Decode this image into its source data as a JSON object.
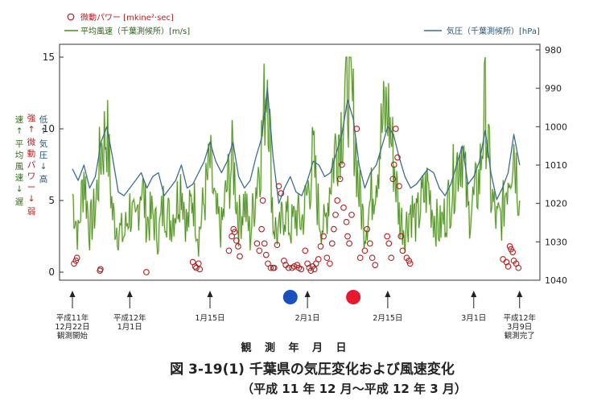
{
  "legend": {
    "power": "微動パワー [mkine²·sec]",
    "wind": "平均風速（千葉測候所）[m/s]",
    "pressure": "気圧（千葉測候所）[hPa]"
  },
  "left_annotation": {
    "wind_col": [
      "速",
      "↑",
      "平",
      "均",
      "風",
      "速",
      "↓",
      "遅"
    ],
    "power_col": [
      "強",
      "↑",
      "微",
      "動",
      "パ",
      "ワ",
      "ー",
      "↓",
      "弱"
    ],
    "pressure_col": [
      "低",
      "↑",
      "気",
      "圧",
      "↓",
      "高"
    ]
  },
  "date_labels": [
    {
      "lines": [
        "平成11年",
        "12月22日",
        "観測開始"
      ],
      "day": 0
    },
    {
      "lines": [
        "平成12年",
        "1月1日"
      ],
      "day": 10
    },
    {
      "lines": [
        "1月15日"
      ],
      "day": 24
    },
    {
      "lines": [
        "2月1日"
      ],
      "day": 41
    },
    {
      "lines": [
        "2月15日"
      ],
      "day": 55
    },
    {
      "lines": [
        "3月1日"
      ],
      "day": 70
    },
    {
      "lines": [
        "平成12年",
        "3月9日",
        "観測完了"
      ],
      "day": 78
    }
  ],
  "xlabel": "観 測 年 月 日",
  "caption": {
    "line1": "図 3-19(1)  千葉県の気圧変化および風速変化",
    "line2": "（平成 11 年 12 月～平成 12 年 3 月）"
  },
  "colors": {
    "wind": "#4a8a2a",
    "wind_light": "#a8d070",
    "pressure": "#3d6d8c",
    "power": "#b02020",
    "blue_marker": "#1a4fc0",
    "red_marker": "#e81830"
  },
  "markers": [
    {
      "color": "blue",
      "day": 38
    },
    {
      "color": "red",
      "day": 49
    }
  ],
  "chart_data": {
    "type": "line",
    "xlim_days": [
      0,
      80
    ],
    "y_left": {
      "ylim": [
        0,
        15
      ],
      "ticks": [
        0,
        5,
        10,
        15
      ]
    },
    "y_right": {
      "ylim": [
        1040,
        980
      ],
      "ticks": [
        980,
        990,
        1000,
        1010,
        1020,
        1030,
        1040
      ],
      "inverted": true
    },
    "series": [
      {
        "name": "気圧（千葉測候所）",
        "axis": "right",
        "x": [
          0,
          1,
          2,
          3,
          4,
          5,
          6,
          7,
          8,
          9,
          10,
          11,
          12,
          13,
          14,
          15,
          16,
          17,
          18,
          19,
          20,
          21,
          22,
          23,
          24,
          25,
          26,
          27,
          28,
          29,
          30,
          31,
          32,
          33,
          34,
          35,
          36,
          37,
          38,
          39,
          40,
          41,
          42,
          43,
          44,
          45,
          46,
          47,
          48,
          49,
          50,
          51,
          52,
          53,
          54,
          55,
          56,
          57,
          58,
          59,
          60,
          61,
          62,
          63,
          64,
          65,
          66,
          67,
          68,
          69,
          70,
          71,
          72,
          73,
          74,
          75,
          76,
          77,
          78
        ],
        "values": [
          1011,
          1014,
          1010,
          1016,
          1013,
          1004,
          1000,
          1008,
          1017,
          1018,
          1016,
          1014,
          1012,
          1016,
          1013,
          1012,
          1018,
          1016,
          1014,
          1010,
          1016,
          1015,
          1012,
          1009,
          1004,
          1009,
          1012,
          1009,
          1004,
          1013,
          1016,
          1014,
          1008,
          1003,
          990,
          1008,
          1020,
          1016,
          1013,
          1017,
          1018,
          1014,
          1009,
          1010,
          1013,
          1012,
          1007,
          1002,
          993,
          998,
          1010,
          1016,
          1012,
          1010,
          1005,
          1000,
          1002,
          1008,
          1013,
          1016,
          1015,
          1013,
          1011,
          1012,
          1016,
          1018,
          1015,
          1010,
          1005,
          1015,
          1013,
          1009,
          1001,
          1012,
          1019,
          1016,
          1012,
          1002,
          1010
        ]
      },
      {
        "name": "平均風速（千葉測候所）",
        "axis": "left",
        "x": [
          0,
          1,
          2,
          3,
          4,
          5,
          6,
          7,
          8,
          9,
          10,
          11,
          12,
          13,
          14,
          15,
          16,
          17,
          18,
          19,
          20,
          21,
          22,
          23,
          24,
          25,
          26,
          27,
          28,
          29,
          30,
          31,
          32,
          33,
          34,
          35,
          36,
          37,
          38,
          39,
          40,
          41,
          42,
          43,
          44,
          45,
          46,
          47,
          48,
          49,
          50,
          51,
          52,
          53,
          54,
          55,
          56,
          57,
          58,
          59,
          60,
          61,
          62,
          63,
          64,
          65,
          66,
          67,
          68,
          69,
          70,
          71,
          72,
          73,
          74,
          75,
          76,
          77,
          78
        ],
        "values": [
          5.5,
          2.5,
          7,
          3,
          4.5,
          8.5,
          10,
          4,
          3,
          2.5,
          4.5,
          3,
          6.5,
          3.5,
          4,
          2.5,
          5,
          3.5,
          4.5,
          6.5,
          3,
          5.5,
          2.5,
          5,
          7.5,
          4,
          3,
          6,
          8,
          3.5,
          5,
          2.5,
          6,
          9,
          14.5,
          3.5,
          2.5,
          4.5,
          3,
          4,
          3.5,
          5.5,
          8,
          4,
          3,
          6.5,
          9,
          10.5,
          13.5,
          11,
          5.5,
          3,
          5,
          7,
          10,
          11.5,
          8,
          4,
          3,
          4.5,
          3.5,
          5,
          6,
          4,
          3,
          4,
          5.5,
          7.5,
          9,
          4,
          5,
          6.5,
          12,
          5.5,
          3.5,
          4,
          7,
          9,
          5
        ]
      },
      {
        "name": "微動パワー",
        "axis": "left",
        "marker": "circle",
        "x": [
          0.3,
          0.6,
          0.8,
          4.8,
          4.9,
          12.9,
          21.0,
          21.4,
          21.6,
          22.0,
          22.2,
          27.3,
          27.8,
          28.1,
          28.3,
          28.6,
          28.9,
          29.2,
          32.2,
          32.6,
          33.0,
          33.2,
          33.5,
          33.8,
          34.1,
          34.6,
          35.0,
          35.2,
          35.7,
          36.0,
          36.4,
          36.9,
          37.2,
          37.7,
          38.3,
          38.7,
          39.2,
          39.5,
          39.9,
          40.6,
          41.0,
          41.3,
          41.6,
          41.9,
          42.2,
          42.5,
          42.9,
          43.3,
          43.8,
          44.4,
          44.9,
          45.3,
          45.6,
          45.9,
          46.2,
          46.7,
          47.0,
          47.3,
          47.8,
          48.0,
          48.3,
          48.7,
          49.6,
          50.2,
          51.0,
          51.4,
          51.9,
          52.3,
          52.8,
          54.9,
          55.2,
          55.6,
          55.9,
          56.1,
          56.4,
          56.7,
          57.0,
          57.3,
          57.6,
          58.3,
          58.7,
          58.9,
          75.1,
          75.7,
          76.0,
          76.3,
          76.5,
          76.8,
          77.0,
          77.4,
          77.8
        ],
        "values": [
          0.6,
          0.8,
          1.0,
          0.1,
          0.2,
          0.0,
          0.7,
          0.4,
          0.3,
          0.6,
          0.2,
          1.5,
          2.5,
          3.0,
          2.8,
          2.2,
          1.8,
          1.1,
          2.0,
          1.5,
          3.0,
          5.0,
          2.0,
          1.2,
          0.6,
          0.3,
          0.3,
          0.3,
          1.9,
          6.0,
          5.5,
          0.8,
          0.5,
          0.3,
          0.3,
          0.4,
          0.5,
          0.3,
          0.2,
          1.5,
          0.6,
          0.3,
          0.1,
          0.4,
          0.2,
          0.6,
          0.9,
          1.8,
          2.5,
          1.0,
          0.6,
          2.0,
          3.0,
          4.0,
          5.0,
          6.5,
          7.5,
          4.5,
          3.5,
          2.5,
          2.0,
          4.0,
          10.0,
          1.0,
          1.5,
          3.0,
          2.0,
          1.0,
          0.5,
          2.5,
          2.0,
          1.0,
          6.5,
          7.5,
          10.0,
          8.0,
          6.0,
          2.5,
          1.5,
          1.0,
          0.8,
          0.6,
          0.9,
          0.7,
          0.4,
          1.8,
          1.6,
          1.4,
          0.8,
          0.6,
          0.3
        ]
      }
    ]
  }
}
